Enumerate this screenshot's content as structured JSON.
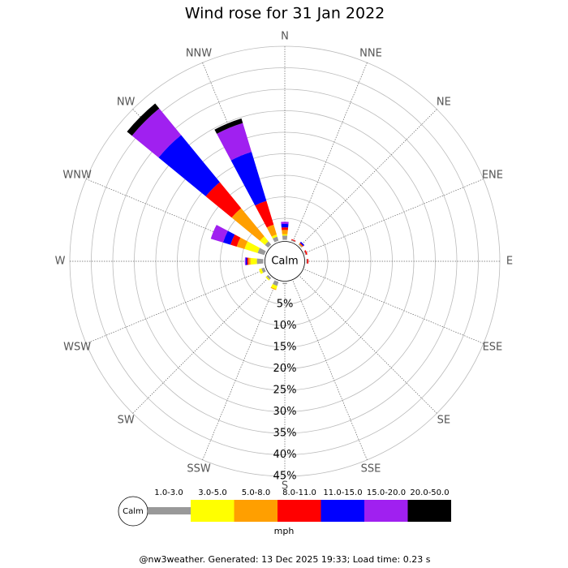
{
  "chart_data": {
    "type": "rose",
    "title": "Wind rose for 31 Jan 2022",
    "directions": [
      "N",
      "NNE",
      "NE",
      "ENE",
      "E",
      "ESE",
      "SE",
      "SSE",
      "S",
      "SSW",
      "SW",
      "WSW",
      "W",
      "WNW",
      "NW",
      "NNW"
    ],
    "calm_label": "Calm",
    "legend_calm_label": "Calm",
    "legend_title": "mph",
    "rlim": [
      0,
      45
    ],
    "rticks": [
      {
        "value": 5,
        "label": "5%"
      },
      {
        "value": 10,
        "label": "10%"
      },
      {
        "value": 15,
        "label": "15%"
      },
      {
        "value": 20,
        "label": "20%"
      },
      {
        "value": 25,
        "label": "25%"
      },
      {
        "value": 30,
        "label": "30%"
      },
      {
        "value": 35,
        "label": "35%"
      },
      {
        "value": 40,
        "label": "40%"
      },
      {
        "value": 45,
        "label": "45%"
      }
    ],
    "series": [
      {
        "name": "1.0-3.0",
        "color": "#999999",
        "values": [
          1,
          0.2,
          0.2,
          0.2,
          0.2,
          0,
          0,
          0,
          0.3,
          1,
          0.5,
          0.7,
          1.5,
          1.6,
          1,
          1
        ]
      },
      {
        "name": "3.0-5.0",
        "color": "#ffff00",
        "values": [
          0.3,
          0,
          0,
          0,
          0,
          0,
          0,
          0,
          0,
          0.8,
          0.3,
          0.6,
          1.5,
          3.2,
          1.5,
          0.5
        ]
      },
      {
        "name": "5.0-8.0",
        "color": "#ff9f00",
        "values": [
          1,
          0,
          0.2,
          0,
          0,
          0,
          0,
          0,
          0,
          0.2,
          0,
          0,
          0.5,
          1.9,
          8.5,
          2.4
        ]
      },
      {
        "name": "8.0-11.0",
        "color": "#ff0000",
        "values": [
          0.6,
          0.2,
          0.2,
          0.3,
          0.3,
          0,
          0,
          0,
          0,
          0,
          0,
          0,
          0.3,
          1.5,
          7.8,
          5.8
        ]
      },
      {
        "name": "11.0-15.0",
        "color": "#0000ff",
        "values": [
          0.8,
          0,
          0.3,
          0,
          0,
          0,
          0,
          0,
          0,
          0,
          0,
          0,
          0.3,
          1.8,
          14.2,
          11.9
        ]
      },
      {
        "name": "15.0-20.0",
        "color": "#a020f0",
        "values": [
          0.5,
          0,
          0,
          0,
          0,
          0,
          0,
          0,
          0,
          0,
          0,
          0,
          0.2,
          3,
          8,
          7
        ]
      },
      {
        "name": "20.0-50.0",
        "color": "#000000",
        "values": [
          0,
          0,
          0,
          0,
          0,
          0,
          0,
          0,
          0,
          0,
          0,
          0,
          0,
          0,
          1.5,
          1.1
        ]
      }
    ]
  },
  "footer": "@nw3weather. Generated: 13 Dec 2025 19:33; Load time: 0.23 s"
}
